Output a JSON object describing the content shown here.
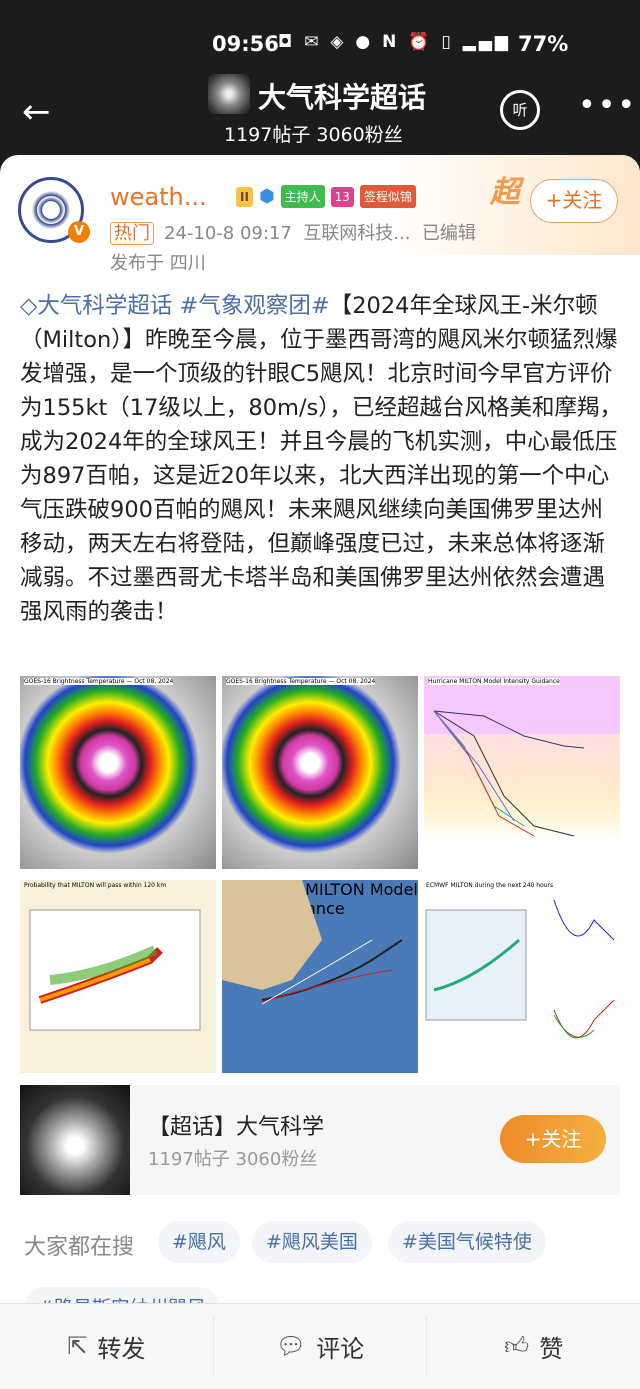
{
  "status": {
    "time": "09:56",
    "battery": "77%"
  },
  "header": {
    "title": "大气科学超话",
    "subtitle": "1197帖子 3060粉丝",
    "listen_label": "听"
  },
  "post": {
    "author": "weath...",
    "level": "II",
    "host_badge": "主持人",
    "fan_level": "13",
    "sign_badge": "签程似锦",
    "super_label": "超",
    "follow_label": "+关注",
    "hot_label": "热门",
    "time": "24-10-8 09:17",
    "source": "互联网科技...",
    "edited": "已编辑",
    "location": "发布于 四川",
    "tag1": "大气科学超话",
    "tag2": "#气象观察团#",
    "text": "【2024年全球风王-米尔顿（Milton）】昨晚至今晨，位于墨西哥湾的飓风米尔顿猛烈爆发增强，是一个顶级的针眼C5飓风！北京时间今早官方评价为155kt（17级以上，80m/s），已经超越台风格美和摩羯，成为2024年的全球风王！并且今晨的飞机实测，中心最低压为897百帕，这是近20年以来，北大西洋出现的第一个中心气压跌破900百帕的飓风！未来飓风继续向美国佛罗里达州移动，两天左右将登陆，但巅峰强度已过，未来总体将逐渐减弱。不过墨西哥尤卡塔半岛和美国佛罗里达州依然会遭遇强风雨的袭击！",
    "images": [
      {
        "caption": "GOES-16 Brightness Temperature — Oct 08, 2024"
      },
      {
        "caption": "GOES-16 Brightness Temperature — Oct 08, 2024"
      },
      {
        "caption": "Hurricane MILTON Model Intensity Guidance"
      },
      {
        "caption": "Probability that MILTON will pass within 120 km"
      },
      {
        "caption": "Hurricane MILTON Model Track Guidance"
      },
      {
        "caption": "ECMWF MILTON during the next 240 hours"
      }
    ]
  },
  "topic": {
    "name": "【超话】大气科学",
    "stats": "1197帖子 3060粉丝",
    "follow_label": "+关注"
  },
  "search": {
    "label": "大家都在搜",
    "chips": [
      "#飓风",
      "#飓风美国",
      "#美国气候特使",
      "#路易斯安纳州飓风"
    ]
  },
  "actions": {
    "repost": "转发",
    "comment": "评论",
    "like": "赞"
  }
}
